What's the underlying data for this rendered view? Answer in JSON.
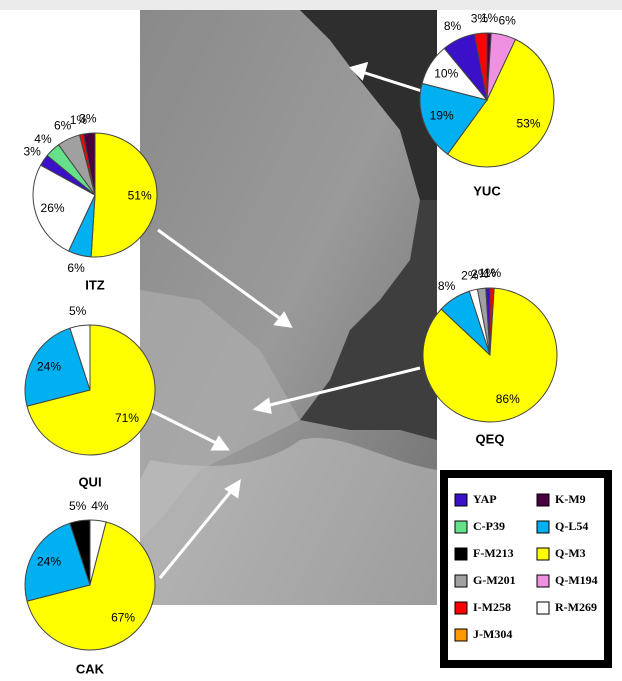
{
  "chart_data": [
    {
      "type": "pie",
      "title": "YUC",
      "categories": [
        "K-M9",
        "Q-M194",
        "Q-M3",
        "Q-L54",
        "R-M269",
        "YAP",
        "I-M258"
      ],
      "values": [
        1,
        6,
        53,
        19,
        10,
        8,
        3
      ],
      "value_labels": [
        "1%",
        "6%",
        "53%",
        "19%",
        "10%",
        "8%",
        "3%"
      ],
      "colors": [
        "#4a0040",
        "#f090e0",
        "#ffff00",
        "#00b0f0",
        "#ffffff",
        "#3a10c8",
        "#ff0000"
      ]
    },
    {
      "type": "pie",
      "title": "ITZ",
      "categories": [
        "Q-M3",
        "Q-L54",
        "R-M269",
        "YAP",
        "C-P39",
        "G-M201",
        "I-M258",
        "K-M9"
      ],
      "values": [
        51,
        6,
        26,
        3,
        4,
        6,
        1,
        3
      ],
      "value_labels": [
        "51%",
        "6%",
        "26%",
        "3%",
        "4%",
        "6%",
        "1%",
        "3%"
      ],
      "colors": [
        "#ffff00",
        "#00b0f0",
        "#ffffff",
        "#3a10c8",
        "#66e08a",
        "#a0a0a0",
        "#ff0000",
        "#4a0040"
      ]
    },
    {
      "type": "pie",
      "title": "QUI",
      "categories": [
        "Q-M3",
        "Q-L54",
        "R-M269"
      ],
      "values": [
        71,
        24,
        5
      ],
      "value_labels": [
        "71%",
        "24%",
        "5%"
      ],
      "colors": [
        "#ffff00",
        "#00b0f0",
        "#ffffff"
      ]
    },
    {
      "type": "pie",
      "title": "QEQ",
      "categories": [
        "I-M258",
        "Q-M3",
        "Q-L54",
        "R-M269",
        "G-M201",
        "YAP"
      ],
      "values": [
        1,
        86,
        8,
        2,
        2,
        1
      ],
      "value_labels": [
        "1%",
        "86%",
        "8%",
        "2%",
        "2%",
        "1%"
      ],
      "colors": [
        "#ff0000",
        "#ffff00",
        "#00b0f0",
        "#ffffff",
        "#a0a0a0",
        "#3a10c8"
      ]
    },
    {
      "type": "pie",
      "title": "CAK",
      "categories": [
        "R-M269",
        "Q-M3",
        "Q-L54",
        "F-M213"
      ],
      "values": [
        4,
        67,
        24,
        5
      ],
      "value_labels": [
        "4%",
        "67%",
        "24%",
        "5%"
      ],
      "colors": [
        "#ffffff",
        "#ffff00",
        "#00b0f0",
        "#000000"
      ]
    }
  ],
  "legend": {
    "items": [
      {
        "name": "YAP",
        "color": "#3a10c8"
      },
      {
        "name": "K-M9",
        "color": "#4a0040"
      },
      {
        "name": "C-P39",
        "color": "#66e08a"
      },
      {
        "name": "Q-L54",
        "color": "#00b0f0"
      },
      {
        "name": "F-M213",
        "color": "#000000"
      },
      {
        "name": "Q-M3",
        "color": "#ffff00"
      },
      {
        "name": "G-M201",
        "color": "#a0a0a0"
      },
      {
        "name": "Q-M194",
        "color": "#f090e0"
      },
      {
        "name": "I-M258",
        "color": "#ff0000"
      },
      {
        "name": "R-M269",
        "color": "#ffffff"
      },
      {
        "name": "J-M304",
        "color": "#ff9900"
      }
    ]
  }
}
